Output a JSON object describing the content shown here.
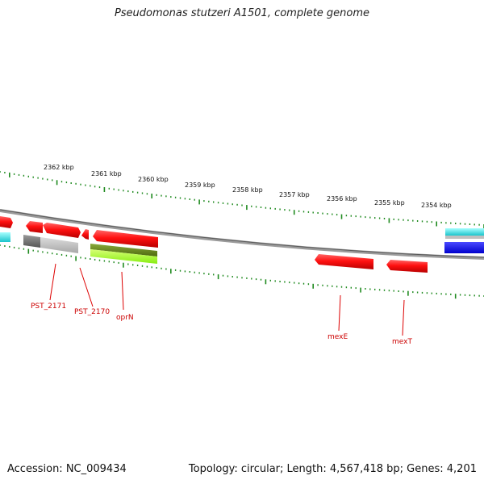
{
  "title": "Pseudomonas stutzeri A1501, complete genome",
  "footer": {
    "accession": "Accession: NC_009434",
    "summary": "Topology: circular; Length: 4,567,418 bp; Genes: 4,201"
  },
  "scale": {
    "labels": [
      "2362 kbp",
      "2361 kbp",
      "2360 kbp",
      "2359 kbp",
      "2358 kbp",
      "2357 kbp",
      "2356 kbp",
      "2355 kbp",
      "2354 kbp"
    ]
  },
  "genes": {
    "labels": [
      "PST_2171",
      "PST_2170",
      "oprN",
      "mexE",
      "mexT"
    ]
  },
  "colors": {
    "ticks": "#1f8a1f",
    "gene": "#ff1a1a",
    "label": "#cc0000",
    "backbone": "#777777",
    "cyan": "#33e0e6",
    "blue": "#1a1aee",
    "olive": "#6b8e23",
    "lime": "#aaff33",
    "gray": "#8a8a8a"
  }
}
